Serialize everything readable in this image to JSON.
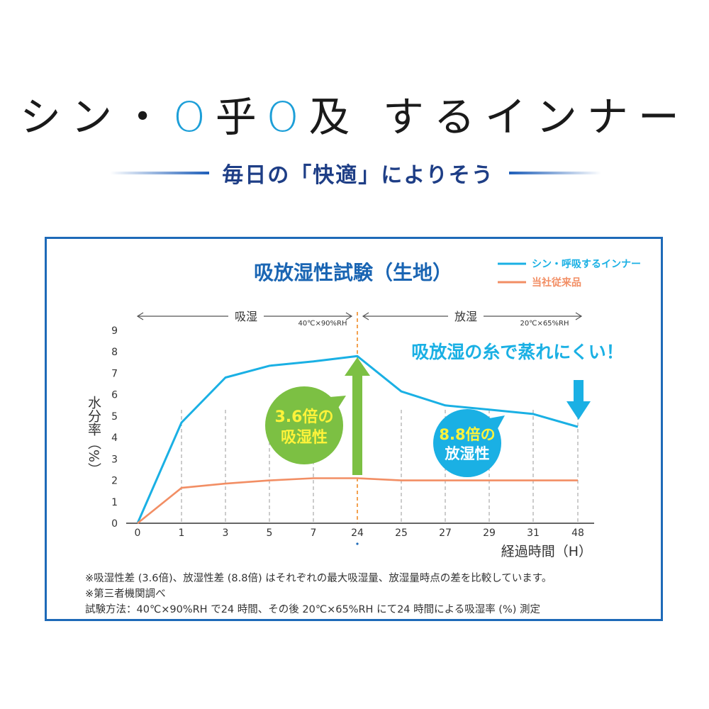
{
  "headline": {
    "part1": "シン・",
    "o1": "O",
    "k1": "乎",
    "o2": "O",
    "k2": "及",
    "part2": " するインナー"
  },
  "tagline": "毎日の「快適」によりそう",
  "colors": {
    "new_product": "#1ab0e4",
    "conventional": "#f28e64",
    "title": "#1a65b3",
    "absorb_bubble": "#7cc043",
    "absorb_arrow": "#7cc043",
    "release_bubble": "#1ab0e4",
    "release_arrow": "#1ab0e4",
    "bubble_text": "#fff33a",
    "divider": "#f08a24",
    "frame": "#1e6ab8"
  },
  "chart_data": {
    "type": "line",
    "title": "吸放湿性試験（生地）",
    "xlabel": "経過時間（H）",
    "ylabel": "水分率（%）",
    "ylim": [
      0,
      9
    ],
    "yticks": [
      "0",
      "1",
      "2",
      "3",
      "4",
      "5",
      "6",
      "7",
      "8",
      "9"
    ],
    "categories": [
      "0",
      "1",
      "3",
      "5",
      "7",
      "24",
      "25",
      "27",
      "29",
      "31",
      "48"
    ],
    "series": [
      {
        "name": "シン・呼吸するインナー",
        "values": [
          0,
          4.7,
          6.8,
          7.35,
          7.55,
          7.8,
          6.15,
          5.5,
          5.3,
          5.1,
          4.5
        ]
      },
      {
        "name": "当社従来品",
        "values": [
          0,
          1.65,
          1.85,
          2.0,
          2.1,
          2.1,
          2.0,
          2.0,
          2.0,
          2.0,
          2.0
        ]
      }
    ],
    "legend_position": "top-right",
    "grid": "vertical-dashed",
    "phases": [
      {
        "label": "吸湿",
        "condition": "40℃×90%RH"
      },
      {
        "label": "放湿",
        "condition": "20℃×65%RH"
      }
    ],
    "callouts": {
      "headline": "吸放湿の糸で蒸れにくい！",
      "absorb": {
        "line1": "3.6倍の",
        "line2": "吸湿性"
      },
      "release": {
        "line1": "8.8倍の",
        "line2": "放湿性"
      }
    }
  },
  "notes": [
    "※吸湿性差 (3.6倍)、放湿性差 (8.8倍) はそれぞれの最大吸湿量、放湿量時点の差を比較しています。",
    "※第三者機関調べ",
    "試験方法：40℃×90%RH で24 時間、その後 20℃×65%RH にて24 時間による吸湿率 (%) 測定"
  ]
}
